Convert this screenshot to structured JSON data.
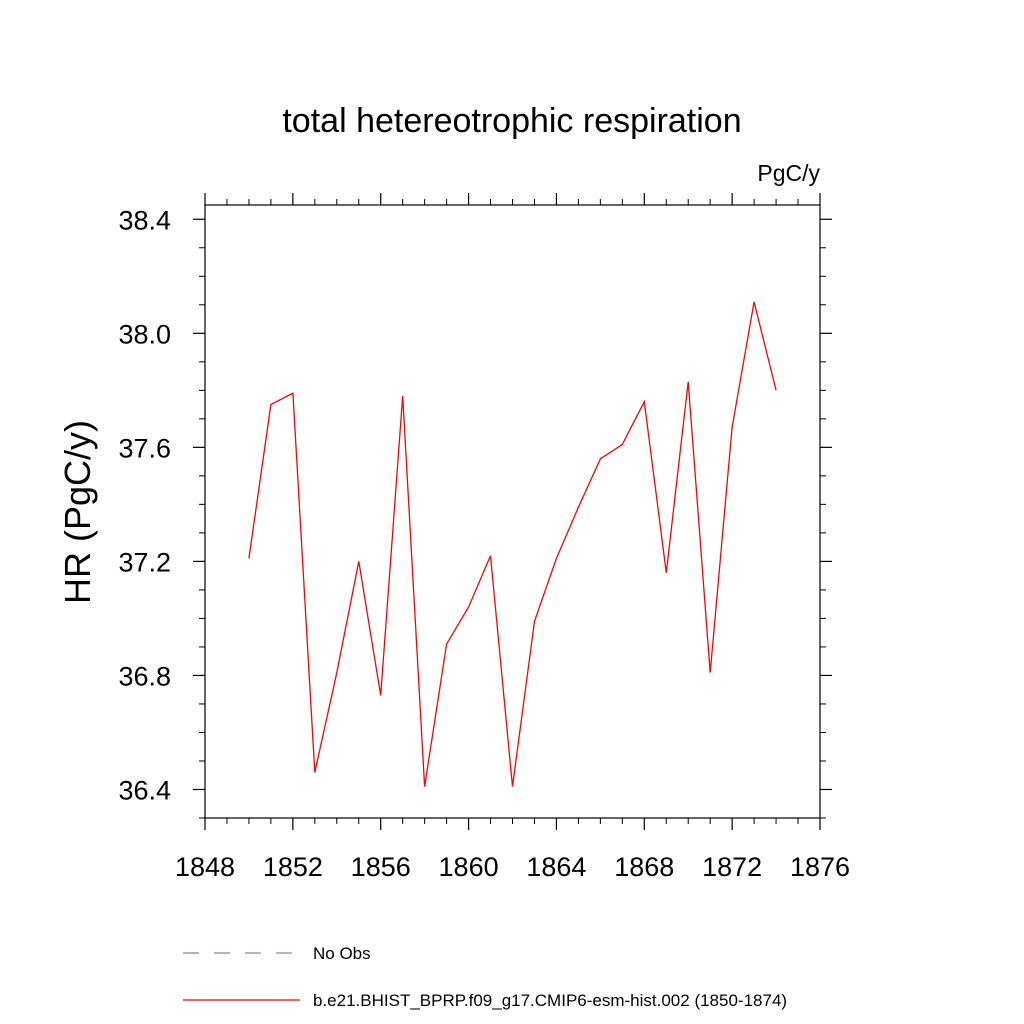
{
  "chart_data": {
    "type": "line",
    "title": "total hetereotrophic respiration",
    "units_label": "PgC/y",
    "ylabel": "HR  (PgC/y)",
    "xlabel": "",
    "xlim": [
      1848,
      1876
    ],
    "ylim": [
      36.3,
      38.45
    ],
    "x_ticks": [
      1848,
      1852,
      1856,
      1860,
      1864,
      1868,
      1872,
      1876
    ],
    "y_ticks": [
      36.4,
      36.8,
      37.2,
      37.6,
      38.0,
      38.4
    ],
    "x_tick_labels": [
      "1848",
      "1852",
      "1856",
      "1860",
      "1864",
      "1868",
      "1872",
      "1876"
    ],
    "y_tick_labels": [
      "36.4",
      "36.8",
      "37.2",
      "37.6",
      "38.0",
      "38.4"
    ],
    "grid": false,
    "legend_position": "bottom",
    "series": [
      {
        "name": "b.e21.BHIST_BPRP.f09_g17.CMIP6-esm-hist.002 (1850-1874)",
        "color": "#ff0000",
        "style": "solid",
        "x": [
          1850,
          1851,
          1852,
          1853,
          1854,
          1855,
          1856,
          1857,
          1858,
          1859,
          1860,
          1861,
          1862,
          1863,
          1864,
          1865,
          1866,
          1867,
          1868,
          1869,
          1870,
          1871,
          1872,
          1873,
          1874
        ],
        "y": [
          37.21,
          37.75,
          37.79,
          36.46,
          36.81,
          37.2,
          36.73,
          37.78,
          36.41,
          36.91,
          37.04,
          37.22,
          36.41,
          36.99,
          37.21,
          37.39,
          37.56,
          37.61,
          37.76,
          37.16,
          37.83,
          36.81,
          37.67,
          38.11,
          37.8
        ]
      }
    ],
    "legend": [
      {
        "label": "No Obs",
        "color": "#8080c0",
        "style": "dashed"
      },
      {
        "label": "b.e21.BHIST_BPRP.f09_g17.CMIP6-esm-hist.002 (1850-1874)",
        "color": "#ff0000",
        "style": "solid"
      }
    ]
  }
}
